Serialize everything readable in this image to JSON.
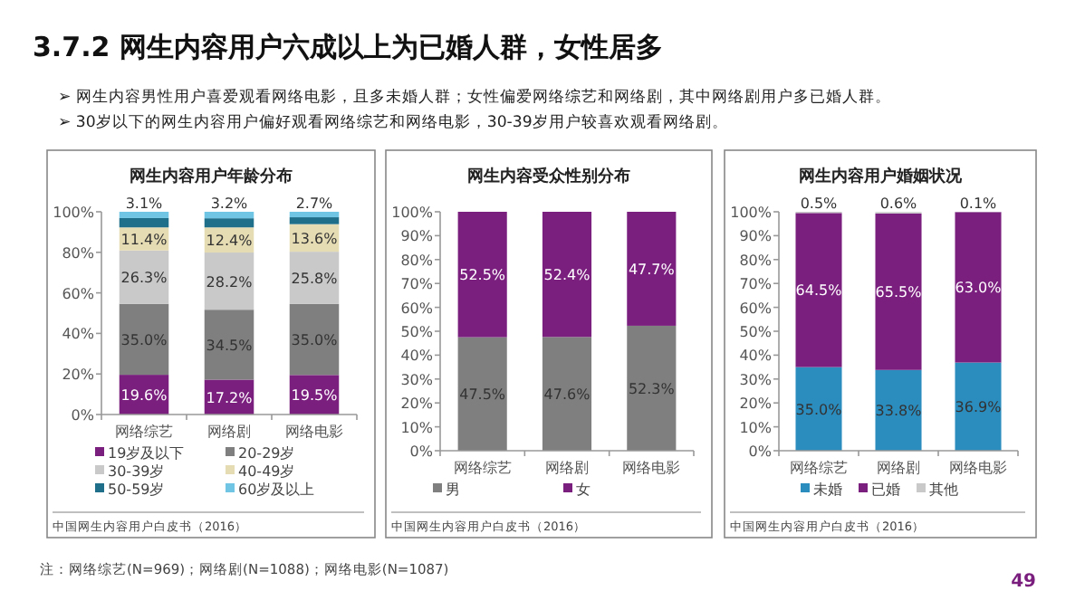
{
  "chart_data": [
    {
      "type": "bar",
      "stacked": true,
      "title": "网生内容用户年龄分布",
      "categories": [
        "网络综艺",
        "网络剧",
        "网络电影"
      ],
      "ylim": [
        0,
        100
      ],
      "yticks": [
        {
          "value": 0,
          "label": "0%"
        },
        {
          "value": 20,
          "label": "20%"
        },
        {
          "value": 40,
          "label": "40%"
        },
        {
          "value": 60,
          "label": "60%"
        },
        {
          "value": 80,
          "label": "80%"
        },
        {
          "value": 100,
          "label": "100%"
        }
      ],
      "legend": "bottom",
      "series": [
        {
          "name": "19岁及以下",
          "color": "#7b1f7f",
          "values": [
            19.6,
            17.2,
            19.5
          ],
          "value_labels": [
            "19.6%",
            "17.2%",
            "19.5%"
          ]
        },
        {
          "name": "20-29岁",
          "color": "#7f7f7f",
          "values": [
            35.0,
            34.5,
            35.0
          ],
          "value_labels": [
            "35.0%",
            "34.5%",
            "35.0%"
          ]
        },
        {
          "name": "30-39岁",
          "color": "#c9c9c9",
          "values": [
            26.3,
            28.2,
            25.8
          ],
          "value_labels": [
            "26.3%",
            "28.2%",
            "25.8%"
          ]
        },
        {
          "name": "40-49岁",
          "color": "#e6dcb4",
          "values": [
            11.4,
            12.4,
            13.6
          ],
          "value_labels": [
            "11.4%",
            "12.4%",
            "13.6%"
          ]
        },
        {
          "name": "50-59岁",
          "color": "#1f6f8b",
          "values": [
            4.6,
            4.5,
            3.4
          ]
        },
        {
          "name": "60岁及以上",
          "color": "#6fc5e3",
          "values": [
            3.1,
            3.2,
            2.7
          ],
          "value_labels": [
            "3.1%",
            "3.2%",
            "2.7%"
          ]
        }
      ],
      "annotations": [
        "3.7.2 网生内容用户六成以上为已婚人群，女性居多",
        "➢ 网生内容男性用户喜爱观看网络电影，且多未婚人群；女性偏爱网络综艺和网络剧，其中网络剧用户多已婚人群。",
        "➢ 30岁以下的网生内容用户偏好观看网络综艺和网络电影，30-39岁用户较喜欢观看网络剧。",
        "中国网生内容用户白皮书（2016）",
        "注：网络综艺(N=969)；网络剧(N=1088)；网络电影(N=1087)",
        "49"
      ]
    },
    {
      "type": "bar",
      "stacked": true,
      "title": "网生内容受众性别分布",
      "categories": [
        "网络综艺",
        "网络剧",
        "网络电影"
      ],
      "ylim": [
        0,
        100
      ],
      "yticks": [
        {
          "value": 0,
          "label": "0%"
        },
        {
          "value": 10,
          "label": "10%"
        },
        {
          "value": 20,
          "label": "20%"
        },
        {
          "value": 30,
          "label": "30%"
        },
        {
          "value": 40,
          "label": "40%"
        },
        {
          "value": 50,
          "label": "50%"
        },
        {
          "value": 60,
          "label": "60%"
        },
        {
          "value": 70,
          "label": "70%"
        },
        {
          "value": 80,
          "label": "80%"
        },
        {
          "value": 90,
          "label": "90%"
        },
        {
          "value": 100,
          "label": "100%"
        }
      ],
      "legend": "bottom",
      "series": [
        {
          "name": "男",
          "color": "#7f7f7f",
          "values": [
            47.5,
            47.6,
            52.3
          ],
          "value_labels": [
            "47.5%",
            "47.6%",
            "52.3%"
          ]
        },
        {
          "name": "女",
          "color": "#7b1f7f",
          "values": [
            52.5,
            52.4,
            47.7
          ],
          "value_labels": [
            "52.5%",
            "52.4%",
            "47.7%"
          ]
        }
      ],
      "annotations": [
        "中国网生内容用户白皮书（2016）"
      ]
    },
    {
      "type": "bar",
      "stacked": true,
      "title": "网生内容用户婚姻状况",
      "categories": [
        "网络综艺",
        "网络剧",
        "网络电影"
      ],
      "ylim": [
        0,
        100
      ],
      "yticks": [
        {
          "value": 0,
          "label": "0%"
        },
        {
          "value": 10,
          "label": "10%"
        },
        {
          "value": 20,
          "label": "20%"
        },
        {
          "value": 30,
          "label": "30%"
        },
        {
          "value": 40,
          "label": "40%"
        },
        {
          "value": 50,
          "label": "50%"
        },
        {
          "value": 60,
          "label": "60%"
        },
        {
          "value": 70,
          "label": "70%"
        },
        {
          "value": 80,
          "label": "80%"
        },
        {
          "value": 90,
          "label": "90%"
        },
        {
          "value": 100,
          "label": "100%"
        }
      ],
      "legend": "bottom",
      "series": [
        {
          "name": "未婚",
          "color": "#2b8cbe",
          "values": [
            35.0,
            33.8,
            36.9
          ],
          "value_labels": [
            "35.0%",
            "33.8%",
            "36.9%"
          ]
        },
        {
          "name": "已婚",
          "color": "#7b1f7f",
          "values": [
            64.5,
            65.5,
            63.0
          ],
          "value_labels": [
            "64.5%",
            "65.5%",
            "63.0%"
          ]
        },
        {
          "name": "其他",
          "color": "#c9c9c9",
          "values": [
            0.5,
            0.6,
            0.1
          ],
          "value_labels": [
            "0.5%",
            "0.6%",
            "0.1%"
          ]
        }
      ],
      "annotations": [
        "中国网生内容用户白皮书（2016）"
      ]
    }
  ]
}
